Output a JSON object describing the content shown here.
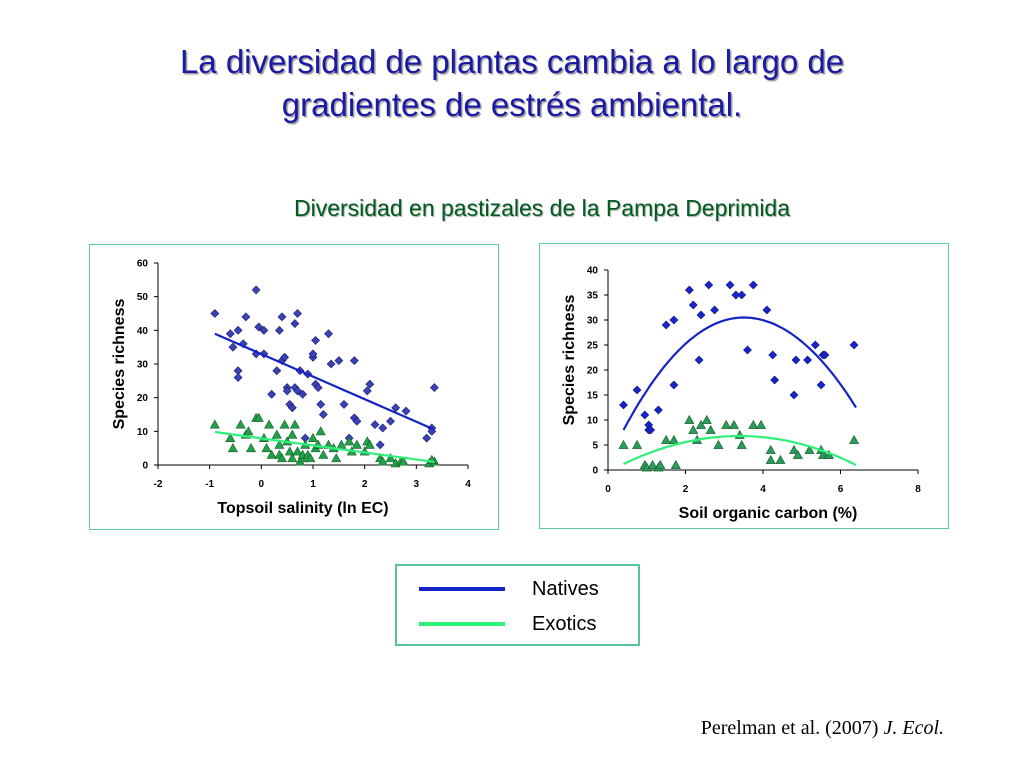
{
  "title_lines": [
    "La diversidad de plantas cambia a lo largo de",
    "gradientes de estrés ambiental."
  ],
  "subtitle": "Diversidad en pastizales de la Pampa Deprimida",
  "citation": {
    "authors": "Perelman et al. (2007) ",
    "journal": "J. Ecol."
  },
  "legend": {
    "natives": {
      "label": "Natives",
      "color": "#1524c4"
    },
    "exotics": {
      "label": "Exotics",
      "color": "#2ef07a"
    }
  },
  "chart_data": [
    {
      "type": "scatter",
      "xlabel": "Topsoil salinity (ln EC)",
      "ylabel": "Species richness",
      "xlim": [
        -2,
        4
      ],
      "ylim": [
        0,
        60
      ],
      "xticks": [
        -2,
        -1,
        0,
        1,
        2,
        3,
        4
      ],
      "yticks": [
        0,
        10,
        20,
        30,
        40,
        50,
        60
      ],
      "series": [
        {
          "name": "Natives",
          "marker": "diamond",
          "color": "#3a42b8",
          "line_color": "#1524c4",
          "trend": [
            [
              -0.9,
              39
            ],
            [
              3.35,
              10.5
            ]
          ],
          "points": [
            [
              -0.9,
              45
            ],
            [
              -0.6,
              39
            ],
            [
              -0.45,
              40
            ],
            [
              -0.35,
              36
            ],
            [
              -0.3,
              44
            ],
            [
              -0.55,
              35
            ],
            [
              -0.45,
              28
            ],
            [
              -0.45,
              26
            ],
            [
              -0.1,
              52
            ],
            [
              -0.05,
              41
            ],
            [
              0.05,
              40
            ],
            [
              -0.1,
              33
            ],
            [
              0.05,
              33
            ],
            [
              0.2,
              21
            ],
            [
              0.3,
              28
            ],
            [
              0.35,
              40
            ],
            [
              0.4,
              44
            ],
            [
              0.4,
              31
            ],
            [
              0.45,
              32
            ],
            [
              0.5,
              23
            ],
            [
              0.5,
              22
            ],
            [
              0.55,
              18
            ],
            [
              0.6,
              17
            ],
            [
              0.65,
              23
            ],
            [
              0.7,
              22
            ],
            [
              0.65,
              42
            ],
            [
              0.7,
              45
            ],
            [
              0.75,
              28
            ],
            [
              0.8,
              21
            ],
            [
              0.85,
              8
            ],
            [
              0.9,
              27
            ],
            [
              1.0,
              32
            ],
            [
              1.0,
              33
            ],
            [
              1.05,
              37
            ],
            [
              1.05,
              24
            ],
            [
              1.1,
              23
            ],
            [
              1.15,
              18
            ],
            [
              1.2,
              15
            ],
            [
              1.3,
              39
            ],
            [
              1.35,
              30
            ],
            [
              1.5,
              31
            ],
            [
              1.6,
              18
            ],
            [
              1.7,
              8
            ],
            [
              1.8,
              14
            ],
            [
              1.8,
              31
            ],
            [
              1.85,
              13
            ],
            [
              2.05,
              22
            ],
            [
              2.1,
              24
            ],
            [
              2.2,
              12
            ],
            [
              2.3,
              6
            ],
            [
              2.35,
              11
            ],
            [
              2.5,
              13
            ],
            [
              2.6,
              17
            ],
            [
              2.8,
              16
            ],
            [
              3.2,
              8
            ],
            [
              3.3,
              11
            ],
            [
              3.35,
              23
            ],
            [
              3.3,
              10
            ]
          ]
        },
        {
          "name": "Exotics",
          "marker": "triangle",
          "color": "#22a04a",
          "line_color": "#2ef07a",
          "trend": [
            [
              -0.9,
              9.8
            ],
            [
              3.35,
              0.9
            ]
          ],
          "points": [
            [
              -0.9,
              12
            ],
            [
              -0.6,
              8
            ],
            [
              -0.55,
              5
            ],
            [
              -0.4,
              12
            ],
            [
              -0.3,
              9
            ],
            [
              -0.25,
              10
            ],
            [
              -0.2,
              5
            ],
            [
              -0.1,
              14
            ],
            [
              -0.05,
              14
            ],
            [
              0.05,
              8
            ],
            [
              0.1,
              5
            ],
            [
              0.15,
              12
            ],
            [
              0.2,
              3
            ],
            [
              0.3,
              9
            ],
            [
              0.35,
              6
            ],
            [
              0.35,
              3
            ],
            [
              0.4,
              2
            ],
            [
              0.45,
              12
            ],
            [
              0.5,
              7
            ],
            [
              0.55,
              4
            ],
            [
              0.6,
              2
            ],
            [
              0.6,
              9
            ],
            [
              0.65,
              12
            ],
            [
              0.7,
              4
            ],
            [
              0.75,
              1
            ],
            [
              0.8,
              2
            ],
            [
              0.8,
              3
            ],
            [
              0.85,
              6
            ],
            [
              0.9,
              3
            ],
            [
              0.95,
              2
            ],
            [
              1.0,
              8
            ],
            [
              1.05,
              5
            ],
            [
              1.1,
              6
            ],
            [
              1.15,
              10
            ],
            [
              1.2,
              3
            ],
            [
              1.3,
              6
            ],
            [
              1.4,
              5
            ],
            [
              1.45,
              2
            ],
            [
              1.55,
              6
            ],
            [
              1.7,
              7
            ],
            [
              1.75,
              4
            ],
            [
              1.85,
              6
            ],
            [
              2.0,
              4
            ],
            [
              2.05,
              7
            ],
            [
              2.1,
              6
            ],
            [
              2.3,
              2
            ],
            [
              2.35,
              1
            ],
            [
              2.5,
              2
            ],
            [
              2.6,
              0.5
            ],
            [
              2.7,
              1
            ],
            [
              2.75,
              1
            ],
            [
              3.25,
              0.5
            ],
            [
              3.35,
              1
            ],
            [
              3.3,
              1.5
            ]
          ]
        }
      ]
    },
    {
      "type": "scatter",
      "xlabel": "Soil organic carbon (%)",
      "ylabel": "Species richness",
      "xlim": [
        0,
        8
      ],
      "ylim": [
        0,
        40
      ],
      "xticks": [
        0,
        2,
        4,
        6,
        8
      ],
      "yticks": [
        0,
        5,
        10,
        15,
        20,
        25,
        30,
        35,
        40
      ],
      "series": [
        {
          "name": "Natives",
          "marker": "diamond",
          "color": "#1524d0",
          "line_color": "#1524c4",
          "trend_quadratic": {
            "x_range": [
              0.4,
              6.4
            ],
            "vertex_x": 3.5,
            "vertex_y": 30.5,
            "start_y": 8,
            "end_y": 12.5
          },
          "points": [
            [
              0.4,
              13
            ],
            [
              0.75,
              16
            ],
            [
              0.95,
              11
            ],
            [
              1.05,
              9
            ],
            [
              1.05,
              8
            ],
            [
              1.1,
              8
            ],
            [
              1.3,
              12
            ],
            [
              1.5,
              29
            ],
            [
              1.7,
              30
            ],
            [
              1.7,
              17
            ],
            [
              2.1,
              36
            ],
            [
              2.2,
              33
            ],
            [
              2.35,
              22
            ],
            [
              2.4,
              31
            ],
            [
              2.6,
              37
            ],
            [
              2.75,
              32
            ],
            [
              3.15,
              37
            ],
            [
              3.3,
              35
            ],
            [
              3.45,
              35
            ],
            [
              3.6,
              24
            ],
            [
              3.75,
              37
            ],
            [
              4.1,
              32
            ],
            [
              4.25,
              23
            ],
            [
              4.3,
              18
            ],
            [
              4.8,
              15
            ],
            [
              4.85,
              22
            ],
            [
              5.15,
              22
            ],
            [
              5.35,
              25
            ],
            [
              5.5,
              17
            ],
            [
              5.55,
              23
            ],
            [
              5.6,
              23
            ],
            [
              6.35,
              25
            ]
          ]
        },
        {
          "name": "Exotics",
          "marker": "triangle",
          "color": "#2c9a5a",
          "line_color": "#2ef07a",
          "trend_quadratic": {
            "x_range": [
              0.4,
              6.4
            ],
            "vertex_x": 3.4,
            "vertex_y": 6.8,
            "start_y": 1.2,
            "end_y": 1.0
          },
          "points": [
            [
              0.4,
              5
            ],
            [
              0.75,
              5
            ],
            [
              0.95,
              1
            ],
            [
              1.0,
              0.5
            ],
            [
              1.15,
              1
            ],
            [
              1.3,
              0.5
            ],
            [
              1.35,
              1
            ],
            [
              1.5,
              6
            ],
            [
              1.7,
              6
            ],
            [
              1.75,
              1
            ],
            [
              2.1,
              10
            ],
            [
              2.2,
              8
            ],
            [
              2.3,
              6
            ],
            [
              2.4,
              9
            ],
            [
              2.55,
              10
            ],
            [
              2.65,
              8
            ],
            [
              2.85,
              5
            ],
            [
              3.05,
              9
            ],
            [
              3.25,
              9
            ],
            [
              3.4,
              7
            ],
            [
              3.45,
              5
            ],
            [
              3.75,
              9
            ],
            [
              3.95,
              9
            ],
            [
              4.2,
              4
            ],
            [
              4.2,
              2
            ],
            [
              4.45,
              2
            ],
            [
              4.8,
              4
            ],
            [
              4.9,
              3
            ],
            [
              5.2,
              4
            ],
            [
              5.5,
              4
            ],
            [
              5.55,
              3
            ],
            [
              5.7,
              3
            ],
            [
              6.35,
              6
            ]
          ]
        }
      ]
    }
  ]
}
